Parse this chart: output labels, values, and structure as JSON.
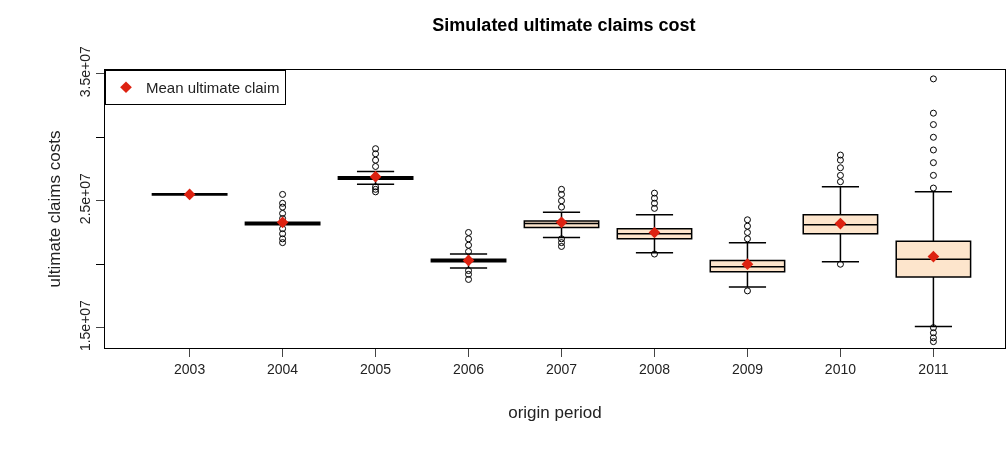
{
  "chart_data": {
    "type": "box",
    "title": "Simulated ultimate claims cost",
    "xlabel": "origin period",
    "ylabel": "ultimate claims costs",
    "categories": [
      "2003",
      "2004",
      "2005",
      "2006",
      "2007",
      "2008",
      "2009",
      "2010",
      "2011"
    ],
    "ylim": [
      13400000,
      35300000
    ],
    "yticks": [
      {
        "value": 15000000,
        "label": "1.5e+07"
      },
      {
        "value": 20000000,
        "label": null
      },
      {
        "value": 25000000,
        "label": "2.5e+07"
      },
      {
        "value": 30000000,
        "label": null
      },
      {
        "value": 35000000,
        "label": "3.5e+07"
      }
    ],
    "series": [
      {
        "color": "#fde5cc",
        "boxes": [
          {
            "low": 25450000,
            "q1": 25450000,
            "median": 25500000,
            "q3": 25550000,
            "high": 25550000
          },
          {
            "low": 23100000,
            "q1": 23100000,
            "median": 23200000,
            "q3": 23300000,
            "high": 23300000,
            "outliers": [
              25500000,
              24800000,
              24500000,
              24000000,
              23600000,
              22800000,
              22400000,
              22000000,
              21700000
            ]
          },
          {
            "low": 26300000,
            "q1": 26700000,
            "median": 26800000,
            "q3": 26900000,
            "high": 27300000,
            "outliers": [
              29100000,
              28700000,
              28200000,
              27700000,
              26100000,
              25900000,
              25700000
            ]
          },
          {
            "low": 19700000,
            "q1": 20200000,
            "median": 20300000,
            "q3": 20400000,
            "high": 20800000,
            "outliers": [
              22500000,
              22000000,
              21500000,
              21000000,
              19500000,
              19200000,
              18800000
            ]
          },
          {
            "low": 22100000,
            "q1": 22900000,
            "median": 23200000,
            "q3": 23400000,
            "high": 24100000,
            "outliers": [
              25900000,
              25500000,
              25000000,
              24500000,
              22000000,
              21700000,
              21400000
            ]
          },
          {
            "low": 20900000,
            "q1": 22000000,
            "median": 22400000,
            "q3": 22800000,
            "high": 23900000,
            "outliers": [
              25600000,
              25200000,
              24800000,
              24400000,
              20800000
            ]
          },
          {
            "low": 18200000,
            "q1": 19400000,
            "median": 19800000,
            "q3": 20300000,
            "high": 21700000,
            "outliers": [
              23500000,
              23000000,
              22500000,
              22000000,
              17900000
            ]
          },
          {
            "low": 20200000,
            "q1": 22400000,
            "median": 23100000,
            "q3": 23900000,
            "high": 26100000,
            "outliers": [
              28600000,
              28200000,
              27600000,
              27000000,
              26500000,
              20000000
            ]
          },
          {
            "low": 15100000,
            "q1": 19000000,
            "median": 20400000,
            "q3": 21800000,
            "high": 25700000,
            "outliers": [
              34600000,
              31900000,
              31000000,
              30000000,
              29000000,
              28000000,
              27000000,
              26000000,
              15000000,
              14600000,
              14200000,
              13900000
            ]
          }
        ]
      },
      {
        "type": "scatter",
        "name": "Mean ultimate claim",
        "color": "#dd2211",
        "marker": "diamond",
        "values": [
          25500000,
          23300000,
          26900000,
          20300000,
          23300000,
          22500000,
          20000000,
          23200000,
          20600000
        ]
      }
    ],
    "legend": "top left"
  }
}
